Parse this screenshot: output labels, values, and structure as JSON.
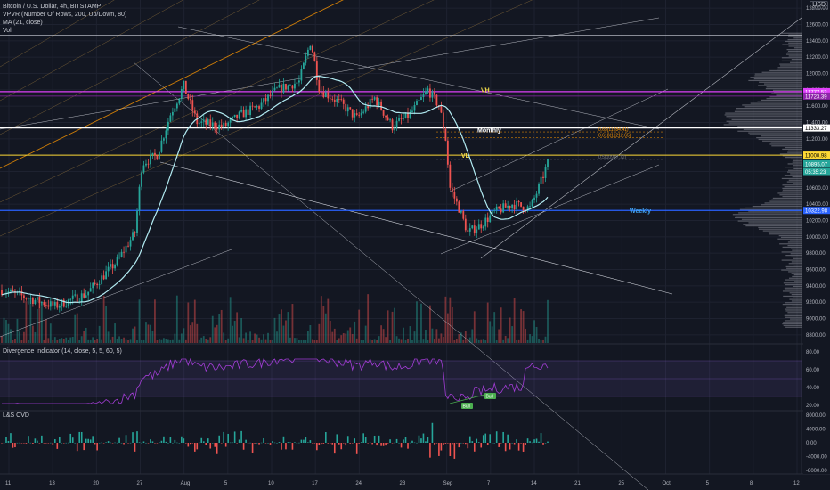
{
  "legend": {
    "title": "Bitcoin / U.S. Dollar, 4h, BITSTAMP",
    "vpvr": "VPVR (Number Of Rows, 200, Up/Down, 80)",
    "ma": "MA (21, close)",
    "vol": "Vol"
  },
  "currency": "USD",
  "colors": {
    "background": "#131722",
    "up": "#26a69a",
    "down": "#ef5350",
    "ma_line": "#b2ebf2",
    "purple": "#cc33cc",
    "yellow": "#f7e04b",
    "white_line": "#ffffff",
    "orange": "#ff9800",
    "blue": "#2962ff",
    "rsi": "#a33dd6",
    "grid": "#1e2230"
  },
  "chart_data": [
    {
      "type": "candlestick",
      "title": "Bitcoin / U.S. Dollar, 4h, BITSTAMP",
      "x_tick_labels": [
        "11",
        "13",
        "20",
        "27",
        "Aug",
        "5",
        "10",
        "17",
        "24",
        "28",
        "Sep",
        "7",
        "14",
        "21",
        "25",
        "Oct",
        "5",
        "8",
        "12"
      ],
      "y_tick_labels": [
        "12800.00",
        "12600.00",
        "12400.00",
        "12200.00",
        "12000.00",
        "11800.00",
        "11600.00",
        "11400.00",
        "11200.00",
        "11000.00",
        "10800.00",
        "10600.00",
        "10400.00",
        "10200.00",
        "10000.00",
        "9800.00",
        "9600.00",
        "9400.00",
        "9200.00",
        "9000.00",
        "8800.00"
      ],
      "ylim": [
        8700,
        12900
      ],
      "anchor_path": [
        {
          "t": 0,
          "p": 9350
        },
        {
          "t": 60,
          "p": 9150
        },
        {
          "t": 95,
          "p": 9300
        },
        {
          "t": 130,
          "p": 9700
        },
        {
          "t": 150,
          "p": 10050
        },
        {
          "t": 158,
          "p": 10900
        },
        {
          "t": 175,
          "p": 11000
        },
        {
          "t": 190,
          "p": 11500
        },
        {
          "t": 205,
          "p": 11850
        },
        {
          "t": 220,
          "p": 11400
        },
        {
          "t": 250,
          "p": 11350
        },
        {
          "t": 270,
          "p": 11500
        },
        {
          "t": 290,
          "p": 11600
        },
        {
          "t": 310,
          "p": 11800
        },
        {
          "t": 335,
          "p": 11900
        },
        {
          "t": 348,
          "p": 12400
        },
        {
          "t": 358,
          "p": 11800
        },
        {
          "t": 380,
          "p": 11650
        },
        {
          "t": 400,
          "p": 11450
        },
        {
          "t": 420,
          "p": 11700
        },
        {
          "t": 440,
          "p": 11350
        },
        {
          "t": 460,
          "p": 11500
        },
        {
          "t": 480,
          "p": 11800
        },
        {
          "t": 493,
          "p": 11600
        },
        {
          "t": 500,
          "p": 11200
        },
        {
          "t": 505,
          "p": 10600
        },
        {
          "t": 515,
          "p": 10350
        },
        {
          "t": 525,
          "p": 10050
        },
        {
          "t": 540,
          "p": 10150
        },
        {
          "t": 555,
          "p": 10300
        },
        {
          "t": 575,
          "p": 10400
        },
        {
          "t": 595,
          "p": 10350
        },
        {
          "t": 605,
          "p": 10600
        },
        {
          "t": 615,
          "p": 10900
        }
      ],
      "annotations": [
        {
          "text": "VH",
          "price": 11760
        },
        {
          "text": "Monthly",
          "price": 11270
        },
        {
          "text": "VL",
          "price": 10960
        },
        {
          "text": "Weekly",
          "price": 10280
        },
        {
          "text": "0.65(11284.41)",
          "price": 11284.41
        },
        {
          "text": "0.618(11212.65)",
          "price": 11212.65
        },
        {
          "text": "0.5(10947.72)",
          "price": 10947.72
        }
      ],
      "price_labels": [
        {
          "text": "11777.53",
          "price": 11777.53,
          "color": "#e040fb"
        },
        {
          "text": "11723.39",
          "price": 11723.39,
          "color": "#8e24aa"
        },
        {
          "text": "11333.27",
          "price": 11333.27,
          "color": "#ffffff"
        },
        {
          "text": "11000.98",
          "price": 11000.98,
          "color": "#fdd835"
        },
        {
          "text": "10895.07",
          "price": 10895.07,
          "color": "#26a69a"
        },
        {
          "text": "05:35:23",
          "price": 10800,
          "color": "#26a69a"
        },
        {
          "text": "10322.98",
          "price": 10322.98,
          "color": "#2962ff"
        }
      ]
    },
    {
      "type": "line",
      "title": "Divergence Indicator (14, close, 5, 5, 60, 5)",
      "y_tick_labels": [
        "80.00",
        "60.00",
        "40.00",
        "20.00"
      ],
      "ylim": [
        15,
        88
      ],
      "band": [
        30,
        70
      ],
      "labels": [
        "Bull",
        "Bull"
      ]
    },
    {
      "type": "bar",
      "title": "L&S CVD",
      "y_tick_labels": [
        "8000.00",
        "4000.00",
        "0.00",
        "-4000.00",
        "-8000.00"
      ],
      "ylim": [
        -9000,
        9000
      ]
    }
  ]
}
